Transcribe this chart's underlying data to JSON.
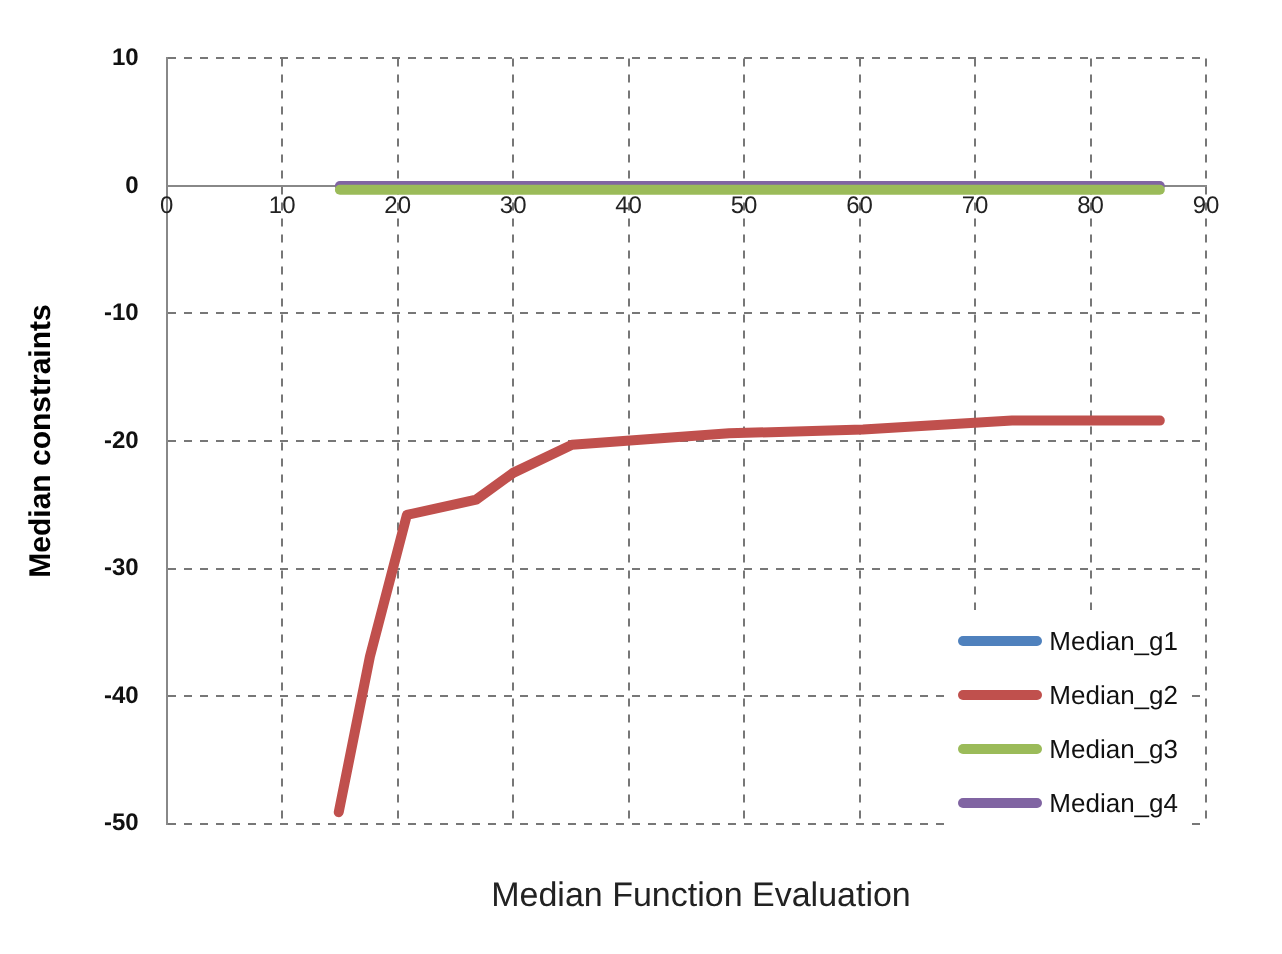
{
  "chart_data": {
    "type": "line",
    "xlabel": "Median Function Evaluation",
    "ylabel": "Median constraints",
    "xlim": [
      0,
      90
    ],
    "xticks": [
      0,
      10,
      20,
      30,
      40,
      50,
      60,
      70,
      80,
      90
    ],
    "ylim": [
      -50,
      10
    ],
    "yticks": [
      -50,
      -40,
      -30,
      -20,
      -10,
      0,
      10
    ],
    "grid": true,
    "legend": "bottom right",
    "marker": "none",
    "line_style": "solid",
    "series": [
      {
        "name": "Median_g1",
        "color": "#4f81bd"
      },
      {
        "name": "Median_g2",
        "color": "#c0504d",
        "x": [
          14.9,
          17.6,
          20.8,
          26.8,
          30.0,
          35.1,
          48.7,
          60.3,
          73.2,
          86
        ],
        "values": [
          -49.1,
          -36.9,
          -25.8,
          -24.6,
          -22.5,
          -20.3,
          -19.4,
          -19.1,
          -18.4,
          -18.4
        ]
      },
      {
        "name": "Median_g3",
        "color": "#9bbb59",
        "x": [
          15,
          86
        ],
        "values": [
          -0.3,
          -0.3
        ]
      },
      {
        "name": "Median_g4",
        "color": "#8064a2",
        "x": [
          15,
          86
        ],
        "values": [
          0,
          0
        ]
      }
    ]
  }
}
